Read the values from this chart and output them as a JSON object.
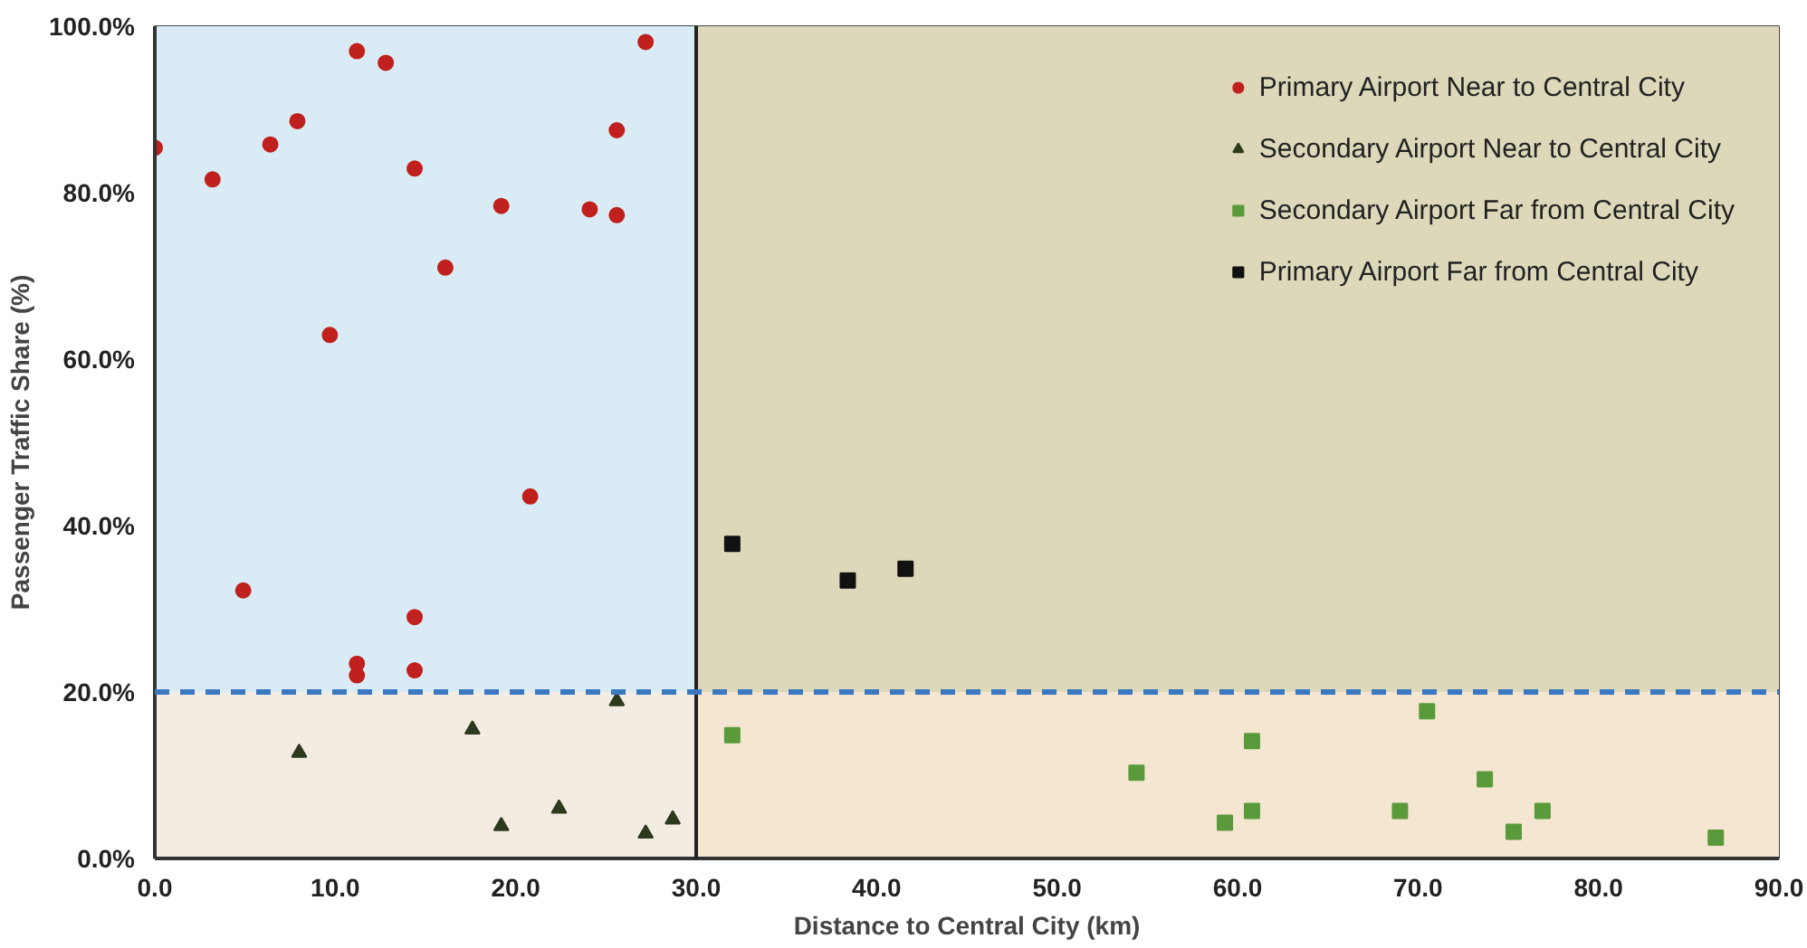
{
  "chart_data": {
    "type": "scatter",
    "xlabel": "Distance to Central City (km)",
    "ylabel": "Passenger Traffic Share (%)",
    "xlim": [
      0,
      90
    ],
    "ylim": [
      0,
      100
    ],
    "xticks": [
      {
        "value": 0,
        "label": "0.0"
      },
      {
        "value": 10,
        "label": "10.0"
      },
      {
        "value": 20,
        "label": "20.0"
      },
      {
        "value": 30,
        "label": "30.0"
      },
      {
        "value": 40,
        "label": "40.0"
      },
      {
        "value": 50,
        "label": "50.0"
      },
      {
        "value": 60,
        "label": "60.0"
      },
      {
        "value": 70,
        "label": "70.0"
      },
      {
        "value": 80,
        "label": "80.0"
      },
      {
        "value": 90,
        "label": "90.0"
      }
    ],
    "yticks": [
      {
        "value": 0,
        "label": "0.0%"
      },
      {
        "value": 20,
        "label": "20.0%"
      },
      {
        "value": 40,
        "label": "40.0%"
      },
      {
        "value": 60,
        "label": "60.0%"
      },
      {
        "value": 80,
        "label": "80.0%"
      },
      {
        "value": 100,
        "label": "100.0%"
      }
    ],
    "legend": "top right",
    "bands": [
      {
        "axis": "x",
        "from": 0,
        "to": 30,
        "color": "#d9ecf5"
      },
      {
        "axis": "x",
        "from": 30,
        "to": 90,
        "color": "#dcd8b9"
      },
      {
        "axis": "y",
        "from": 0,
        "to": 20,
        "color": "#fdecdc"
      }
    ],
    "ref_lines": [
      {
        "axis": "x",
        "value": 30,
        "color": "#222222",
        "line_style": "solid"
      },
      {
        "axis": "y",
        "value": 20,
        "color": "#3b78c2",
        "line_style": "dashed"
      }
    ],
    "series": [
      {
        "name": "Primary Airport Near to Central City",
        "color": "#c0201e",
        "marker": "circle",
        "x": [
          0,
          3.2,
          6.4,
          7.9,
          11.2,
          12.8,
          14.4,
          16.1,
          19.2,
          24.1,
          25.6,
          25.6,
          27.2,
          9.7,
          4.9,
          20.8,
          14.4,
          11.2,
          11.2,
          14.4
        ],
        "values": [
          85.4,
          81.6,
          85.8,
          88.6,
          97.0,
          95.6,
          82.9,
          71.0,
          78.4,
          78.0,
          77.3,
          87.5,
          98.1,
          62.9,
          32.2,
          43.5,
          29.0,
          23.4,
          22.0,
          22.6
        ]
      },
      {
        "name": "Secondary Airport Near to Central City",
        "color": "#2e3a1e",
        "marker": "triangle",
        "x": [
          8.0,
          17.6,
          25.6,
          19.2,
          22.4,
          27.2,
          28.7
        ],
        "values": [
          12.7,
          15.5,
          18.9,
          3.9,
          6.0,
          3.0,
          4.7
        ]
      },
      {
        "name": "Secondary Airport Far from Central City",
        "color": "#5a9a3a",
        "marker": "square",
        "x": [
          32.0,
          54.4,
          59.3,
          60.8,
          60.8,
          69.0,
          70.5,
          73.7,
          75.3,
          76.9,
          86.5
        ],
        "values": [
          14.8,
          10.3,
          4.3,
          14.1,
          5.7,
          5.7,
          17.7,
          9.5,
          3.2,
          5.7,
          2.5
        ]
      },
      {
        "name": "Primary Airport Far from Central City",
        "color": "#111111",
        "marker": "square",
        "x": [
          32.0,
          38.4,
          41.6
        ],
        "values": [
          37.8,
          33.4,
          34.8
        ]
      }
    ]
  }
}
